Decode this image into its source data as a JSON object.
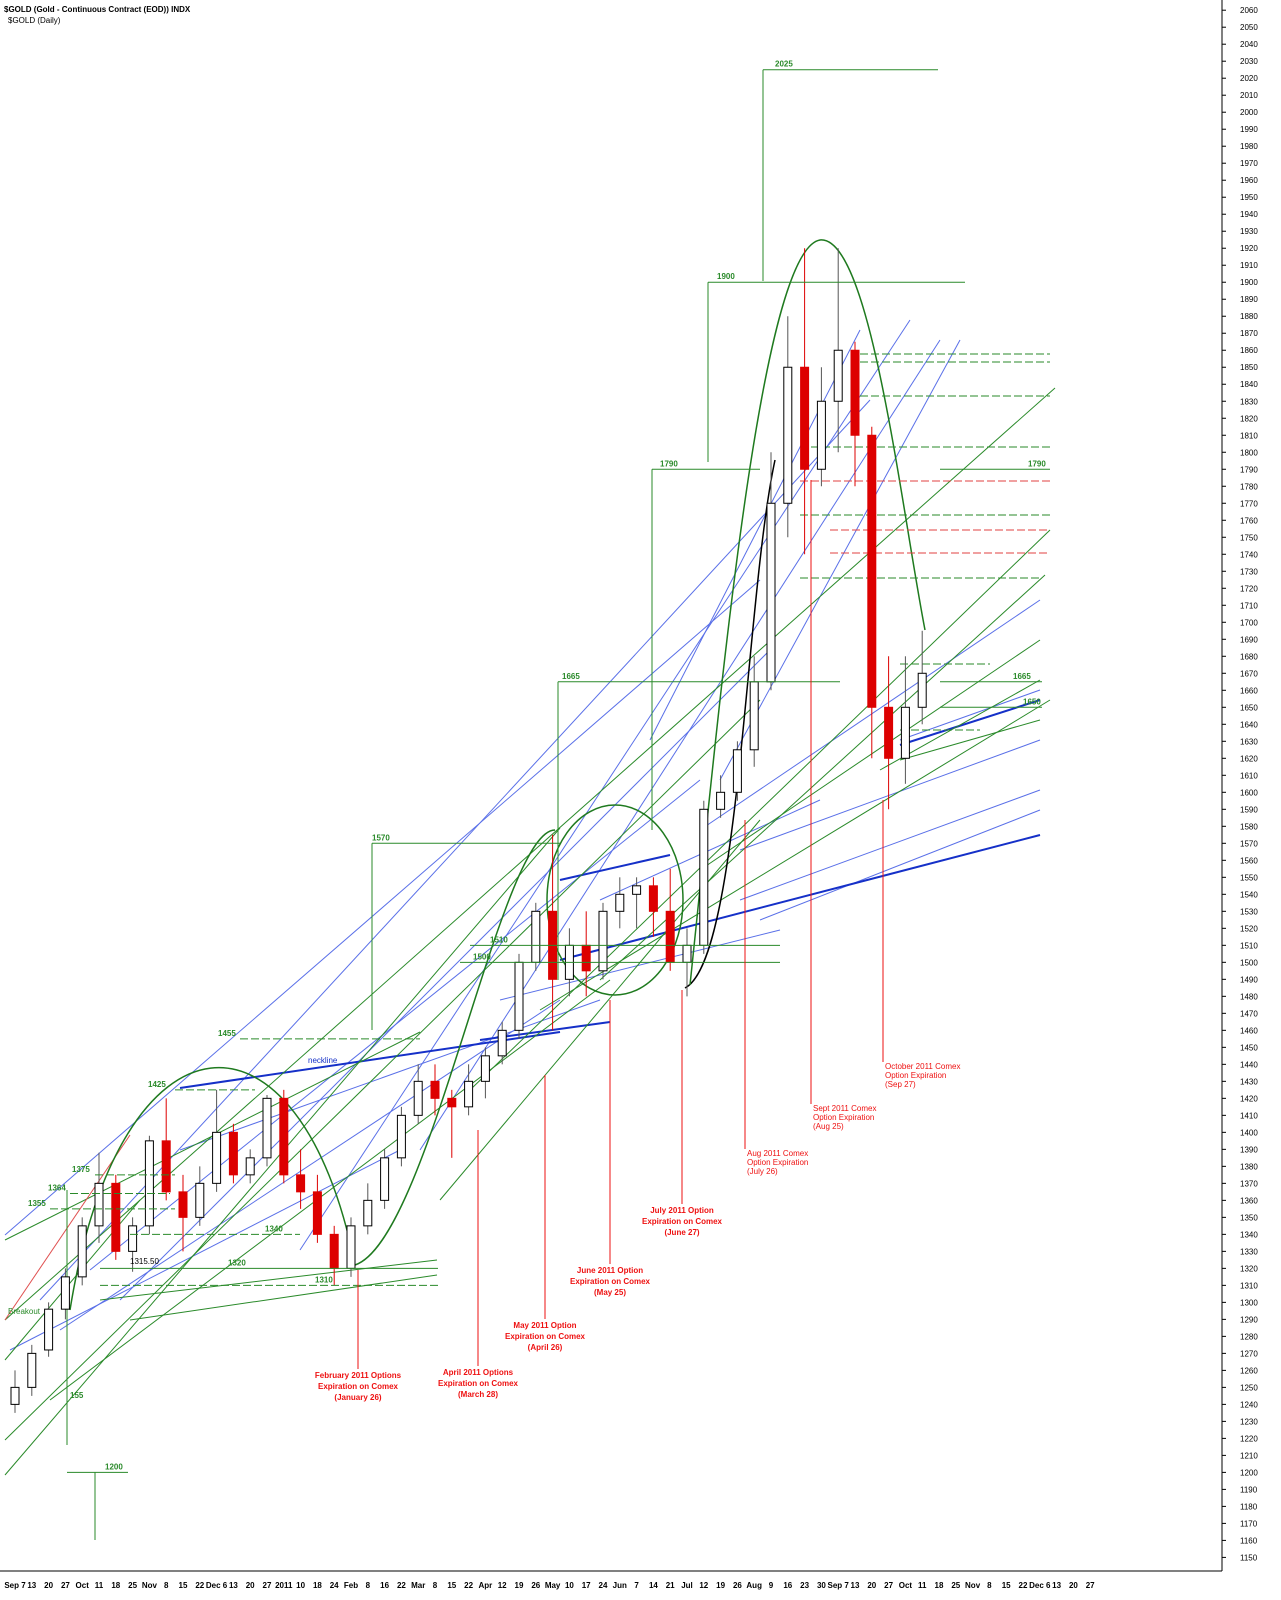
{
  "chart_data": {
    "type": "candlestick",
    "title": "$GOLD (Gold - Continuous Contract (EOD)) INDX",
    "subtitle": "$GOLD (Daily)",
    "categories": [
      "Sep 7",
      "13",
      "20",
      "27",
      "Oct",
      "11",
      "18",
      "25",
      "Nov",
      "8",
      "15",
      "22",
      "Dec 6",
      "13",
      "20",
      "27",
      "2011",
      "10",
      "18",
      "24",
      "Feb",
      "8",
      "16",
      "22",
      "Mar",
      "8",
      "15",
      "22",
      "Apr",
      "12",
      "19",
      "26",
      "May",
      "10",
      "17",
      "24",
      "Jun",
      "7",
      "14",
      "21",
      "Jul",
      "12",
      "19",
      "26",
      "Aug",
      "9",
      "16",
      "23",
      "30",
      "Sep 7",
      "13",
      "20",
      "27",
      "Oct",
      "11",
      "18",
      "25",
      "Nov",
      "8",
      "15",
      "22",
      "Dec 6",
      "13",
      "20",
      "27"
    ],
    "open": [
      1240,
      1250,
      1272,
      1296,
      1315,
      1345,
      1370,
      1330,
      1345,
      1395,
      1365,
      1350,
      1370,
      1400,
      1375,
      1385,
      1420,
      1375,
      1365,
      1340,
      1320,
      1345,
      1360,
      1385,
      1410,
      1430,
      1420,
      1415,
      1430,
      1445,
      1460,
      1500,
      1530,
      1490,
      1510,
      1495,
      1530,
      1540,
      1545,
      1530,
      1500,
      1510,
      1590,
      1600,
      1625,
      1665,
      1770,
      1850,
      1790,
      1830,
      1860,
      1810,
      1650,
      1620,
      1650,
      null,
      null,
      null,
      null,
      null,
      null,
      null,
      null,
      null,
      null
    ],
    "high": [
      1260,
      1275,
      1300,
      1320,
      1350,
      1388,
      1375,
      1350,
      1398,
      1420,
      1375,
      1380,
      1425,
      1405,
      1390,
      1422,
      1425,
      1390,
      1375,
      1345,
      1350,
      1370,
      1390,
      1415,
      1440,
      1440,
      1425,
      1440,
      1450,
      1465,
      1505,
      1535,
      1575,
      1520,
      1530,
      1535,
      1550,
      1550,
      1550,
      1555,
      1520,
      1595,
      1610,
      1630,
      1680,
      1800,
      1880,
      1920,
      1850,
      1920,
      1865,
      1815,
      1680,
      1680,
      1695,
      null,
      null,
      null,
      null,
      null,
      null,
      null,
      null,
      null,
      null
    ],
    "low": [
      1235,
      1245,
      1268,
      1290,
      1310,
      1335,
      1325,
      1318,
      1340,
      1360,
      1330,
      1345,
      1365,
      1370,
      1370,
      1380,
      1370,
      1355,
      1335,
      1310,
      1315,
      1340,
      1355,
      1380,
      1405,
      1410,
      1385,
      1410,
      1420,
      1440,
      1455,
      1495,
      1460,
      1480,
      1480,
      1490,
      1520,
      1520,
      1515,
      1495,
      1480,
      1505,
      1585,
      1595,
      1615,
      1660,
      1750,
      1740,
      1780,
      1800,
      1780,
      1620,
      1590,
      1605,
      1640,
      null,
      null,
      null,
      null,
      null,
      null,
      null,
      null,
      null,
      null
    ],
    "close": [
      1250,
      1270,
      1296,
      1315,
      1345,
      1370,
      1330,
      1345,
      1395,
      1365,
      1350,
      1370,
      1400,
      1375,
      1385,
      1420,
      1375,
      1365,
      1340,
      1320,
      1345,
      1360,
      1385,
      1410,
      1430,
      1420,
      1415,
      1430,
      1445,
      1460,
      1500,
      1530,
      1490,
      1510,
      1495,
      1530,
      1540,
      1545,
      1530,
      1500,
      1510,
      1590,
      1600,
      1625,
      1665,
      1770,
      1850,
      1790,
      1830,
      1860,
      1810,
      1650,
      1620,
      1650,
      1670,
      null,
      null,
      null,
      null,
      null,
      null,
      null,
      null,
      null,
      null
    ],
    "up_color": "#000000",
    "down_color": "#dd0000",
    "ylim": [
      1142,
      2066
    ],
    "yticks": [
      1150,
      1160,
      1170,
      1180,
      1190,
      1200,
      1210,
      1220,
      1230,
      1240,
      1250,
      1260,
      1270,
      1280,
      1290,
      1300,
      1310,
      1320,
      1330,
      1340,
      1350,
      1360,
      1370,
      1380,
      1390,
      1400,
      1410,
      1420,
      1430,
      1440,
      1450,
      1460,
      1470,
      1480,
      1490,
      1500,
      1510,
      1520,
      1530,
      1540,
      1550,
      1560,
      1570,
      1580,
      1590,
      1600,
      1610,
      1620,
      1630,
      1640,
      1650,
      1660,
      1670,
      1680,
      1690,
      1700,
      1710,
      1720,
      1730,
      1740,
      1750,
      1760,
      1770,
      1780,
      1790,
      1800,
      1810,
      1820,
      1830,
      1840,
      1850,
      1860,
      1870,
      1880,
      1890,
      1900,
      1910,
      1920,
      1930,
      1940,
      1950,
      1960,
      1970,
      1980,
      1990,
      2000,
      2010,
      2020,
      2030,
      2040,
      2050,
      2060
    ],
    "levels": [
      2025,
      1900,
      1790,
      1665,
      1570,
      1455,
      1425,
      1375,
      1364,
      1355,
      1200,
      1340,
      1320,
      1310,
      1510,
      1500,
      1790,
      1665,
      1650
    ],
    "level_color": "#2a8a2a",
    "notes": [
      "Breakout",
      "neckline",
      "1315.50",
      "155"
    ],
    "expirations": [
      [
        "February 2011 Options",
        "Expiration on Comex",
        "(January 26)"
      ],
      [
        "April 2011 Options",
        "Expiration on Comex",
        "(March 28)"
      ],
      [
        "May 2011 Option",
        "Expiration on Comex",
        "(April 26)"
      ],
      [
        "June 2011 Option",
        "Expiration on Comex",
        "(May 25)"
      ],
      [
        "July 2011 Option",
        "Expiration on Comex",
        "(June 27)"
      ],
      [
        "Aug 2011 Comex",
        "Option Expiration",
        "(July 26)"
      ],
      [
        "Sept 2011 Comex",
        "Option Expiration",
        "(Aug 25)"
      ],
      [
        "October 2011 Comex",
        "Option Expiration",
        "(Sep 27)"
      ]
    ],
    "expiration_color": "#ee1111"
  }
}
